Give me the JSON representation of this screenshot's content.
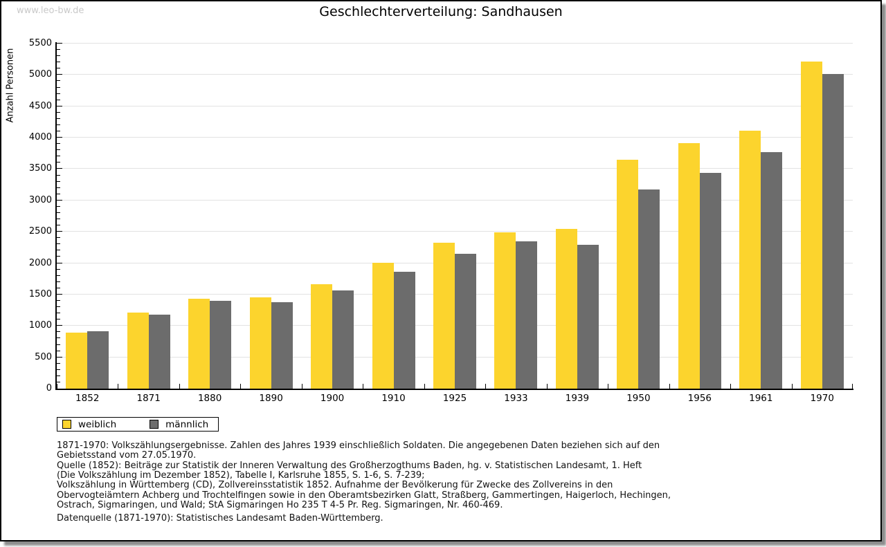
{
  "page": {
    "watermark": "www.leo-bw.de",
    "title": "Geschlechterverteilung: Sandhausen"
  },
  "chart_data": {
    "type": "bar",
    "title": "Geschlechterverteilung: Sandhausen",
    "xlabel": "",
    "ylabel": "Anzahl Personen",
    "ylim": [
      0,
      5500
    ],
    "ytick_step": 500,
    "minor_ytick_step": 100,
    "grid": true,
    "legend_position": "bottom-left",
    "categories": [
      "1852",
      "1871",
      "1880",
      "1890",
      "1900",
      "1910",
      "1925",
      "1933",
      "1939",
      "1950",
      "1956",
      "1961",
      "1970"
    ],
    "series": [
      {
        "name": "weiblich",
        "color": "#FCD42D",
        "values": [
          895,
          1215,
          1430,
          1455,
          1665,
          2005,
          2325,
          2490,
          2545,
          3645,
          3915,
          4115,
          5210
        ]
      },
      {
        "name": "männlich",
        "color": "#6C6C6C",
        "values": [
          920,
          1185,
          1400,
          1380,
          1565,
          1865,
          2145,
          2350,
          2290,
          3170,
          3435,
          3775,
          5015
        ]
      }
    ]
  },
  "footnotes": {
    "lines": [
      "1871-1970: Volkszählungsergebnisse. Zahlen des Jahres 1939 einschließlich Soldaten. Die angegebenen Daten beziehen sich auf den",
      "Gebietsstand vom 27.05.1970.",
      "Quelle (1852): Beiträge zur Statistik der Inneren Verwaltung des Großherzogthums Baden, hg. v. Statistischen Landesamt, 1. Heft",
      "(Die Volkszählung im Dezember 1852), Tabelle I, Karlsruhe 1855, S. 1-6, S. 7-239;",
      "Volkszählung in Württemberg (CD), Zollvereinsstatistik 1852. Aufnahme der Bevölkerung für Zwecke des Zollvereins in den",
      "Obervogteiämtern Achberg und Trochtelfingen sowie in den Oberamtsbezirken Glatt, Straßberg, Gammertingen, Haigerloch, Hechingen,",
      "Ostrach, Sigmaringen, und Wald; StA Sigmaringen Ho 235 T 4-5 Pr. Reg. Sigmaringen, Nr. 460-469."
    ],
    "datenquelle": "Datenquelle (1871-1970): Statistisches Landesamt Baden-Württemberg."
  },
  "colors": {
    "weiblich": "#FCD42D",
    "maennlich": "#6C6C6C",
    "gridline": "#e2e2e2",
    "watermark": "#c9c9c9",
    "axis": "#000000"
  }
}
